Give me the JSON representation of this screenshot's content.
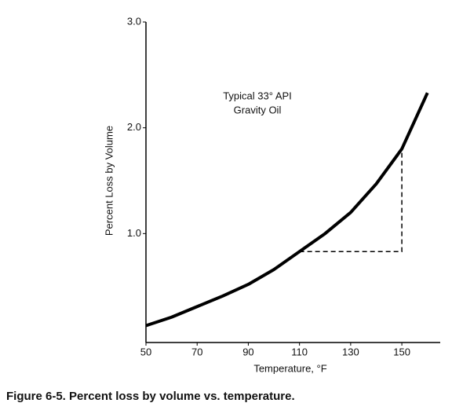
{
  "chart_data": {
    "type": "line",
    "x": [
      50,
      60,
      70,
      80,
      90,
      100,
      110,
      120,
      130,
      140,
      150,
      160
    ],
    "series": [
      {
        "color": "#000000",
        "values": [
          0.13,
          0.21,
          0.31,
          0.41,
          0.52,
          0.66,
          0.83,
          1.0,
          1.2,
          1.47,
          1.8,
          2.33
        ]
      }
    ],
    "guide": {
      "color": "#000000",
      "x": [
        110,
        150,
        150
      ],
      "values": [
        0.83,
        0.83,
        1.8
      ]
    },
    "xlim": [
      50,
      165
    ],
    "ylim": [
      0,
      3
    ],
    "xticks": [
      50,
      70,
      90,
      110,
      130,
      150
    ],
    "yticks": [
      {
        "value": 1,
        "label": "1.0"
      },
      {
        "value": 2,
        "label": "2.0"
      },
      {
        "value": 3,
        "label": "3.0"
      }
    ],
    "xlabel": "Temperature, °F",
    "ylabel": "Percent Loss by Volume",
    "annotation": [
      "Typical 33° API",
      "Gravity Oil"
    ],
    "caption": "Figure 6-5. Percent loss by volume vs. temperature."
  }
}
